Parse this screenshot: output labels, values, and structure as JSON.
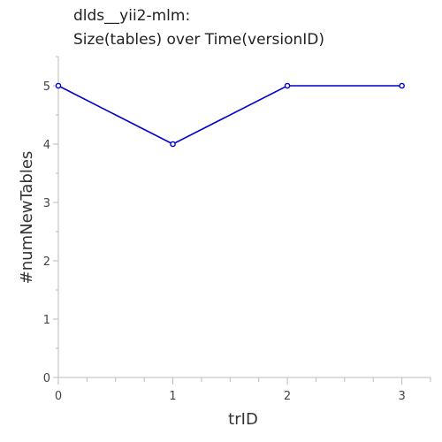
{
  "chart_data": {
    "type": "line",
    "title_lines": [
      "dlds__yii2-mlm:",
      "Size(tables) over Time(versionID)"
    ],
    "xlabel": "trID",
    "ylabel": "#numNewTables",
    "x": [
      0,
      1,
      2,
      3
    ],
    "series": [
      {
        "values": [
          5,
          4,
          5,
          5
        ],
        "color": "#0000cc"
      }
    ],
    "xlim": [
      0,
      3.25
    ],
    "ylim": [
      0,
      5.5
    ],
    "xticks": [
      "0",
      "1",
      "2",
      "3"
    ],
    "yticks": [
      "0",
      "1",
      "2",
      "3",
      "4",
      "5"
    ],
    "grid": false,
    "axis_color": "#bbbbbb"
  }
}
